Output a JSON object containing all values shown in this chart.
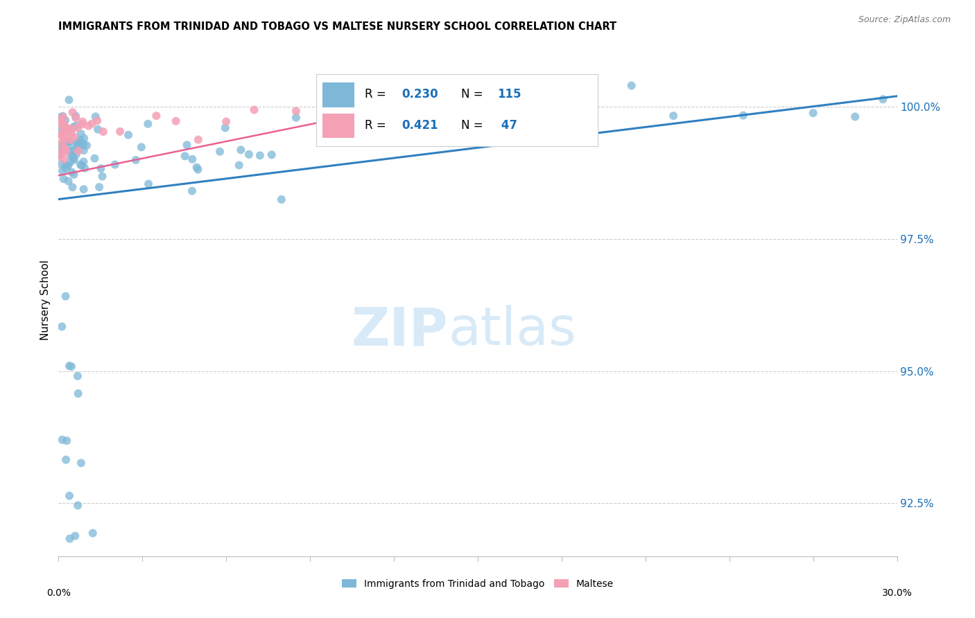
{
  "title": "IMMIGRANTS FROM TRINIDAD AND TOBAGO VS MALTESE NURSERY SCHOOL CORRELATION CHART",
  "source": "Source: ZipAtlas.com",
  "ylabel": "Nursery School",
  "xmin": 0.0,
  "xmax": 30.0,
  "ymin": 91.5,
  "ymax": 101.2,
  "yticks": [
    92.5,
    95.0,
    97.5,
    100.0
  ],
  "ytick_labels": [
    "92.5%",
    "95.0%",
    "97.5%",
    "100.0%"
  ],
  "blue_color": "#7db8d8",
  "pink_color": "#f4a0b5",
  "blue_line_color": "#3080c0",
  "pink_line_color": "#e86090",
  "legend_r_color": "#1a6fba",
  "watermark_color": "#d8eaf7",
  "legend_blue_r": "0.230",
  "legend_blue_n": "115",
  "legend_pink_r": "0.421",
  "legend_pink_n": " 47",
  "blue_trend_x": [
    0.0,
    30.0
  ],
  "blue_trend_y": [
    98.25,
    100.2
  ],
  "pink_trend_x": [
    0.0,
    13.5
  ],
  "pink_trend_y": [
    98.7,
    100.15
  ],
  "legend_label_blue": "Immigrants from Trinidad and Tobago",
  "legend_label_pink": "Maltese"
}
